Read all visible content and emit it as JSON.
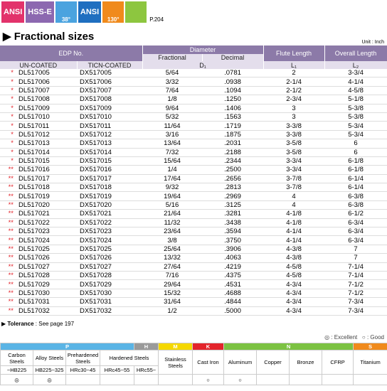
{
  "header": {
    "badges": [
      "ANSI",
      "HSS-E",
      "38°",
      "ANSI",
      "130°"
    ],
    "page_ref": "P.204"
  },
  "title": "Fractional sizes",
  "unit": "Unit : Inch",
  "table": {
    "headers": {
      "edp": "EDP No.",
      "diameter": "Diameter",
      "flute": "Flute Length",
      "overall": "Overall Length",
      "uncoated": "UN-COATED",
      "ticn": "TICN-COATED",
      "fractional": "Fractional",
      "decimal": "Decimal",
      "d1": "D₁",
      "l1": "L₁",
      "l2": "L₂"
    },
    "rows": [
      [
        "*",
        "DL517005",
        "DX517005",
        "5/64",
        ".0781",
        "2",
        "3-3/4"
      ],
      [
        "*",
        "DL517006",
        "DX517006",
        "3/32",
        ".0938",
        "2-1/4",
        "4-1/4"
      ],
      [
        "*",
        "DL517007",
        "DX517007",
        "7/64",
        ".1094",
        "2-1/2",
        "4-5/8"
      ],
      [
        "*",
        "DL517008",
        "DX517008",
        "1/8",
        ".1250",
        "2-3/4",
        "5-1/8"
      ],
      [
        "*",
        "DL517009",
        "DX517009",
        "9/64",
        ".1406",
        "3",
        "5-3/8"
      ],
      [
        "*",
        "DL517010",
        "DX517010",
        "5/32",
        ".1563",
        "3",
        "5-3/8"
      ],
      [
        "*",
        "DL517011",
        "DX517011",
        "11/64",
        ".1719",
        "3-3/8",
        "5-3/4"
      ],
      [
        "*",
        "DL517012",
        "DX517012",
        "3/16",
        ".1875",
        "3-3/8",
        "5-3/4"
      ],
      [
        "*",
        "DL517013",
        "DX517013",
        "13/64",
        ".2031",
        "3-5/8",
        "6"
      ],
      [
        "*",
        "DL517014",
        "DX517014",
        "7/32",
        ".2188",
        "3-5/8",
        "6"
      ],
      [
        "*",
        "DL517015",
        "DX517015",
        "15/64",
        ".2344",
        "3-3/4",
        "6-1/8"
      ],
      [
        "**",
        "DL517016",
        "DX517016",
        "1/4",
        ".2500",
        "3-3/4",
        "6-1/8"
      ],
      [
        "**",
        "DL517017",
        "DX517017",
        "17/64",
        ".2656",
        "3-7/8",
        "6-1/4"
      ],
      [
        "**",
        "DL517018",
        "DX517018",
        "9/32",
        ".2813",
        "3-7/8",
        "6-1/4"
      ],
      [
        "**",
        "DL517019",
        "DX517019",
        "19/64",
        ".2969",
        "4",
        "6-3/8"
      ],
      [
        "**",
        "DL517020",
        "DX517020",
        "5/16",
        ".3125",
        "4",
        "6-3/8"
      ],
      [
        "**",
        "DL517021",
        "DX517021",
        "21/64",
        ".3281",
        "4-1/8",
        "6-1/2"
      ],
      [
        "**",
        "DL517022",
        "DX517022",
        "11/32",
        ".3438",
        "4-1/8",
        "6-3/4"
      ],
      [
        "**",
        "DL517023",
        "DX517023",
        "23/64",
        ".3594",
        "4-1/4",
        "6-3/4"
      ],
      [
        "**",
        "DL517024",
        "DX517024",
        "3/8",
        ".3750",
        "4-1/4",
        "6-3/4"
      ],
      [
        "**",
        "DL517025",
        "DX517025",
        "25/64",
        ".3906",
        "4-3/8",
        "7"
      ],
      [
        "**",
        "DL517026",
        "DX517026",
        "13/32",
        ".4063",
        "4-3/8",
        "7"
      ],
      [
        "**",
        "DL517027",
        "DX517027",
        "27/64",
        ".4219",
        "4-5/8",
        "7-1/4"
      ],
      [
        "**",
        "DL517028",
        "DX517028",
        "7/16",
        ".4375",
        "4-5/8",
        "7-1/4"
      ],
      [
        "**",
        "DL517029",
        "DX517029",
        "29/64",
        ".4531",
        "4-3/4",
        "7-1/2"
      ],
      [
        "**",
        "DL517030",
        "DX517030",
        "15/32",
        ".4688",
        "4-3/4",
        "7-1/2"
      ],
      [
        "**",
        "DL517031",
        "DX517031",
        "31/64",
        ".4844",
        "4-3/4",
        "7-3/4"
      ],
      [
        "**",
        "DL517032",
        "DX517032",
        "1/2",
        ".5000",
        "4-3/4",
        "7-3/4"
      ]
    ]
  },
  "tolerance": {
    "label": "Tolerance",
    "text": " : See page 197"
  },
  "legend": [
    "◎ : Excellent",
    "○ : Good"
  ],
  "materials": {
    "groups": [
      {
        "name": "P",
        "color": "#5ab4e5",
        "span": 4
      },
      {
        "name": "H",
        "color": "#9a9a9a",
        "span": 1
      },
      {
        "name": "M",
        "color": "#f5d800",
        "span": 1
      },
      {
        "name": "K",
        "color": "#e3242b",
        "span": 1
      },
      {
        "name": "N",
        "color": "#7cc242",
        "span": 4
      },
      {
        "name": "S",
        "color": "#f08a1c",
        "span": 1
      }
    ],
    "columns": [
      "Carbon Steels",
      "Alloy Steels",
      "Prehardened Steels",
      "Hardened Steels",
      "Stainless Steels",
      "Cast Iron",
      "Aluminum",
      "Copper",
      "Bronze",
      "CFRP",
      "Titanium"
    ],
    "hardness": [
      "~HB225",
      "HB225~325",
      "HRc30~45",
      "HRc45~55",
      "HRc55~"
    ],
    "ratings": [
      "◎",
      "◎",
      null,
      null,
      null,
      null,
      "○",
      "○",
      null,
      null,
      null,
      null
    ]
  }
}
